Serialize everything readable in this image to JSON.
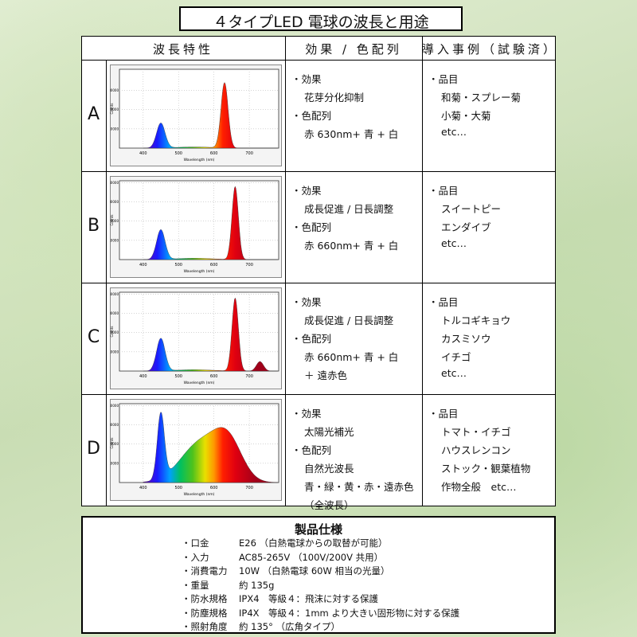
{
  "header": {
    "title": "４タイプLED 電球の波長と用途"
  },
  "table": {
    "headers": [
      "波長特性",
      "効果 / 色配列",
      "導入事例（試験済）"
    ],
    "spectrum_axis": {
      "x_label": "Wavelength (nm)",
      "y_label": "Counts",
      "xticks": [
        400,
        500,
        600,
        700
      ]
    },
    "rows": [
      {
        "label": "A",
        "yticks": [
          10000,
          20000,
          30000
        ],
        "effects": [
          "・効果",
          "花芽分化抑制",
          "・色配列",
          "赤 630nm+ 青 + 白"
        ],
        "examples": [
          "・品目",
          "和菊・スプレー菊",
          "小菊・大菊",
          "etc…"
        ]
      },
      {
        "label": "B",
        "yticks": [
          10000,
          20000,
          30000,
          40000
        ],
        "effects": [
          "・効果",
          "成長促進 / 日長調整",
          "・色配列",
          "赤 660nm+ 青 + 白"
        ],
        "examples": [
          "・品目",
          "スイートピー",
          "エンダイブ",
          "etc…"
        ]
      },
      {
        "label": "C",
        "yticks": [
          10000,
          20000,
          30000,
          40000
        ],
        "effects": [
          "・効果",
          "成長促進 / 日長調整",
          "・色配列",
          "赤 660nm+ 青 + 白",
          "＋ 遠赤色"
        ],
        "examples": [
          "・品目",
          "トルコギキョウ",
          "カスミソウ",
          "イチゴ",
          "etc…"
        ]
      },
      {
        "label": "D",
        "yticks": [
          10000,
          20000,
          30000,
          40000
        ],
        "effects": [
          "・効果",
          "太陽光補光",
          "・色配列",
          "自然光波長",
          "青・緑・黄・赤・遠赤色",
          "（全波長）"
        ],
        "examples": [
          "・品目",
          "トマト・イチゴ",
          "ハウスレンコン",
          "ストック・観葉植物",
          "作物全般　etc…"
        ]
      }
    ]
  },
  "specs": {
    "title": "製品仕様",
    "items": [
      {
        "label": "・口金",
        "value": "E26 （白熱電球からの取替が可能）"
      },
      {
        "label": "・入力",
        "value": "AC85-265V （100V/200V 共用）"
      },
      {
        "label": "・消費電力",
        "value": "10W （白熱電球 60W 相当の光量）"
      },
      {
        "label": "・重量",
        "value": "約 135g"
      },
      {
        "label": "・防水規格",
        "value": "IPX4　等級４：飛沫に対する保護"
      },
      {
        "label": "・防塵規格",
        "value": "IP4X　等級４：1mm より大きい固形物に対する保護"
      },
      {
        "label": "・照射角度",
        "value": "約 135° （広角タイプ）"
      }
    ]
  }
}
